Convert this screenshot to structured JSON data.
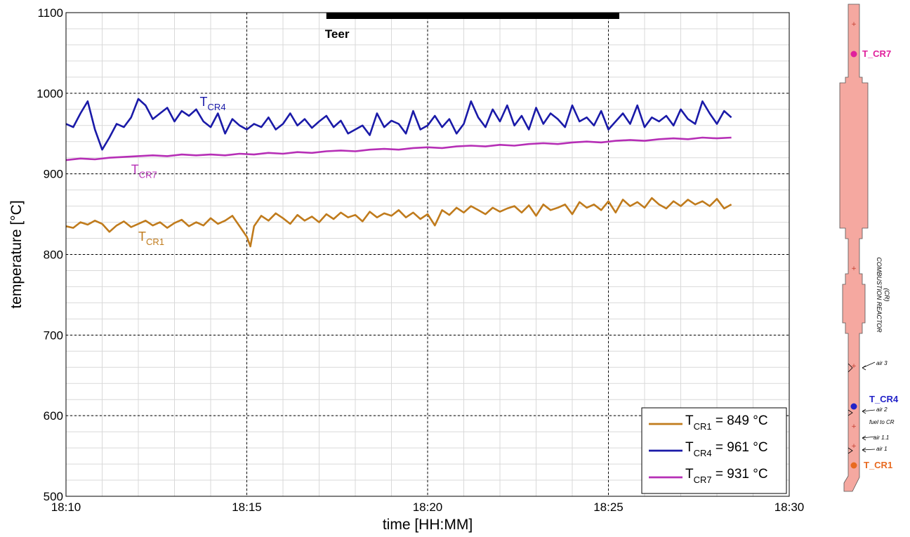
{
  "chart_data": {
    "type": "line",
    "xlabel": "time [HH:MM]",
    "ylabel": "temperature [°C]",
    "x_ticks": [
      "18:10",
      "18:15",
      "18:20",
      "18:25",
      "18:30"
    ],
    "x_tick_minutes": [
      0,
      5,
      10,
      15,
      20
    ],
    "xlim_minutes": [
      0,
      20
    ],
    "y_ticks": [
      500,
      600,
      700,
      800,
      900,
      1000,
      1100
    ],
    "ylim": [
      500,
      1100
    ],
    "grid": true,
    "legend_position": "bottom-right",
    "annotation": {
      "label": "Teer",
      "start_minute": 7.2,
      "end_minute": 15.3
    },
    "series": [
      {
        "name": "T",
        "sub": "CR1",
        "legend_value": " = 849 °C",
        "label_text": "T",
        "label_sub": "CR1",
        "label_at": [
          2.0,
          817
        ],
        "color": "#c07b1c",
        "x": [
          0.0,
          0.2,
          0.4,
          0.6,
          0.8,
          1.0,
          1.2,
          1.4,
          1.6,
          1.8,
          2.0,
          2.2,
          2.4,
          2.6,
          2.8,
          3.0,
          3.2,
          3.4,
          3.6,
          3.8,
          4.0,
          4.2,
          4.4,
          4.6,
          4.8,
          5.0,
          5.1,
          5.2,
          5.4,
          5.6,
          5.8,
          6.0,
          6.2,
          6.4,
          6.6,
          6.8,
          7.0,
          7.2,
          7.4,
          7.6,
          7.8,
          8.0,
          8.2,
          8.4,
          8.6,
          8.8,
          9.0,
          9.2,
          9.4,
          9.6,
          9.8,
          10.0,
          10.2,
          10.4,
          10.6,
          10.8,
          11.0,
          11.2,
          11.4,
          11.6,
          11.8,
          12.0,
          12.2,
          12.4,
          12.6,
          12.8,
          13.0,
          13.2,
          13.4,
          13.6,
          13.8,
          14.0,
          14.2,
          14.4,
          14.6,
          14.8,
          15.0,
          15.2,
          15.4,
          15.6,
          15.8,
          16.0,
          16.2,
          16.4,
          16.6,
          16.8,
          17.0,
          17.2,
          17.4,
          17.6,
          17.8,
          18.0,
          18.2,
          18.4
        ],
        "y": [
          835,
          833,
          840,
          837,
          842,
          838,
          828,
          836,
          841,
          834,
          838,
          842,
          836,
          840,
          833,
          839,
          843,
          835,
          840,
          836,
          845,
          838,
          842,
          848,
          835,
          822,
          810,
          835,
          848,
          842,
          851,
          845,
          838,
          849,
          842,
          847,
          840,
          850,
          844,
          852,
          846,
          849,
          841,
          853,
          846,
          851,
          848,
          855,
          846,
          852,
          844,
          850,
          836,
          855,
          849,
          858,
          852,
          860,
          855,
          850,
          858,
          853,
          857,
          860,
          852,
          861,
          848,
          862,
          855,
          858,
          862,
          850,
          865,
          858,
          862,
          855,
          866,
          852,
          868,
          860,
          865,
          858,
          870,
          862,
          857,
          866,
          860,
          868,
          862,
          866,
          860,
          869,
          857,
          862
        ]
      },
      {
        "name": "T",
        "sub": "CR4",
        "legend_value": " = 961 °C",
        "label_text": "T",
        "label_sub": "CR4",
        "label_at": [
          3.7,
          984
        ],
        "color": "#1a1aa8",
        "x": [
          0.0,
          0.2,
          0.4,
          0.6,
          0.8,
          1.0,
          1.2,
          1.4,
          1.6,
          1.8,
          2.0,
          2.2,
          2.4,
          2.6,
          2.8,
          3.0,
          3.2,
          3.4,
          3.6,
          3.8,
          4.0,
          4.2,
          4.4,
          4.6,
          4.8,
          5.0,
          5.2,
          5.4,
          5.6,
          5.8,
          6.0,
          6.2,
          6.4,
          6.6,
          6.8,
          7.0,
          7.2,
          7.4,
          7.6,
          7.8,
          8.0,
          8.2,
          8.4,
          8.6,
          8.8,
          9.0,
          9.2,
          9.4,
          9.6,
          9.8,
          10.0,
          10.2,
          10.4,
          10.6,
          10.8,
          11.0,
          11.2,
          11.4,
          11.6,
          11.8,
          12.0,
          12.2,
          12.4,
          12.6,
          12.8,
          13.0,
          13.2,
          13.4,
          13.6,
          13.8,
          14.0,
          14.2,
          14.4,
          14.6,
          14.8,
          15.0,
          15.2,
          15.4,
          15.6,
          15.8,
          16.0,
          16.2,
          16.4,
          16.6,
          16.8,
          17.0,
          17.2,
          17.4,
          17.6,
          17.8,
          18.0,
          18.2,
          18.4
        ],
        "y": [
          962,
          958,
          975,
          990,
          955,
          930,
          945,
          962,
          958,
          970,
          993,
          985,
          968,
          975,
          982,
          965,
          978,
          972,
          980,
          965,
          958,
          975,
          950,
          968,
          960,
          955,
          962,
          958,
          970,
          955,
          962,
          975,
          960,
          968,
          957,
          965,
          972,
          958,
          966,
          950,
          955,
          960,
          948,
          975,
          958,
          966,
          962,
          950,
          978,
          955,
          960,
          972,
          958,
          968,
          950,
          962,
          990,
          970,
          958,
          980,
          965,
          985,
          960,
          972,
          955,
          982,
          962,
          975,
          968,
          958,
          985,
          965,
          970,
          960,
          978,
          955,
          965,
          975,
          962,
          985,
          958,
          970,
          965,
          972,
          960,
          980,
          968,
          962,
          990,
          975,
          962,
          978,
          970
        ]
      },
      {
        "name": "T",
        "sub": "CR7",
        "legend_value": " = 931 °C",
        "label_text": "T",
        "label_sub": "CR7",
        "label_at": [
          1.8,
          900
        ],
        "color": "#b62fb6",
        "x": [
          0.0,
          0.4,
          0.8,
          1.2,
          1.6,
          2.0,
          2.4,
          2.8,
          3.2,
          3.6,
          4.0,
          4.4,
          4.8,
          5.2,
          5.6,
          6.0,
          6.4,
          6.8,
          7.2,
          7.6,
          8.0,
          8.4,
          8.8,
          9.2,
          9.6,
          10.0,
          10.4,
          10.8,
          11.2,
          11.6,
          12.0,
          12.4,
          12.8,
          13.2,
          13.6,
          14.0,
          14.4,
          14.8,
          15.2,
          15.6,
          16.0,
          16.4,
          16.8,
          17.2,
          17.6,
          18.0,
          18.4
        ],
        "y": [
          917,
          919,
          918,
          920,
          921,
          922,
          923,
          922,
          924,
          923,
          924,
          923,
          925,
          924,
          926,
          925,
          927,
          926,
          928,
          929,
          928,
          930,
          931,
          930,
          932,
          933,
          932,
          934,
          935,
          934,
          936,
          935,
          937,
          938,
          937,
          939,
          940,
          939,
          941,
          942,
          941,
          943,
          944,
          943,
          945,
          944,
          945
        ]
      }
    ]
  },
  "reactor": {
    "title_line1": "COMBUSTION REACTOR",
    "title_line2": "(CR)",
    "label_cr7": "T_CR7",
    "label_cr4": "T_CR4",
    "label_cr1": "T_CR1",
    "air3": "air 3",
    "air2": "air 2",
    "fuel": "fuel to CR",
    "air11": "air 1.1",
    "air1": "air 1",
    "color_cr7": "#e0209c",
    "color_cr4": "#2323c8",
    "color_cr1": "#e86a20",
    "fill_color": "#f5a8a0"
  }
}
